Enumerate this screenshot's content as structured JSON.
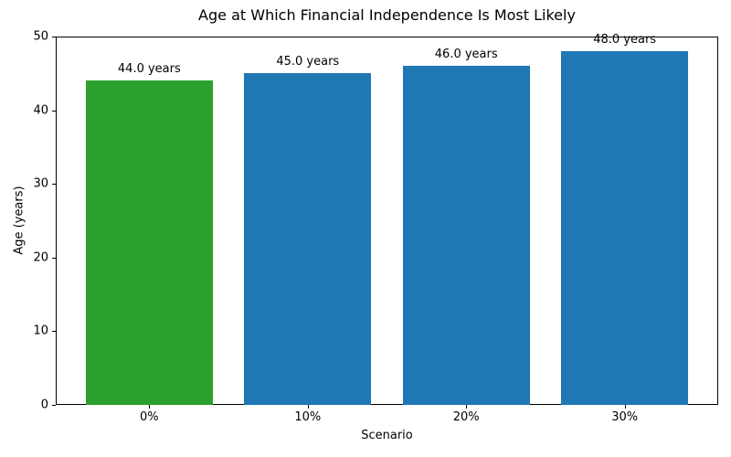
{
  "chart_data": {
    "type": "bar",
    "title": "Age at Which Financial Independence Is Most Likely",
    "xlabel": "Scenario",
    "ylabel": "Age (years)",
    "categories": [
      "0%",
      "10%",
      "20%",
      "30%"
    ],
    "values": [
      44.0,
      45.0,
      46.0,
      48.0
    ],
    "bar_labels": [
      "44.0 years",
      "45.0 years",
      "46.0 years",
      "48.0 years"
    ],
    "bar_colors": [
      "#2ca02c",
      "#1f77b4",
      "#1f77b4",
      "#1f77b4"
    ],
    "ylim": [
      0,
      50
    ],
    "yticks": [
      0,
      10,
      20,
      30,
      40,
      50
    ],
    "grid": false,
    "legend_position": "none",
    "axes_background": "#ffffff",
    "spine_color": "#000000"
  }
}
